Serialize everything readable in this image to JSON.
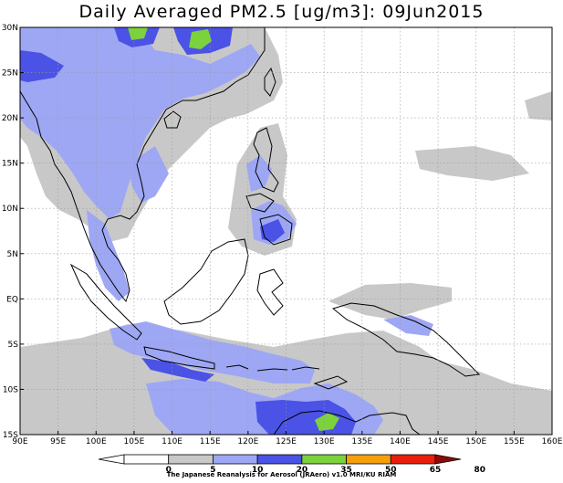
{
  "title": "Daily Averaged PM2.5 [ug/m3]: 09Jun2015",
  "credit": "The Japanese Reanalysis for Aerosol (JRAero) v1.0 MRI/KU RIAM",
  "map": {
    "lon_range": [
      90,
      160
    ],
    "lat_range": [
      -15,
      30
    ],
    "lon_ticks": [
      {
        "v": 90,
        "label": "90E"
      },
      {
        "v": 95,
        "label": "95E"
      },
      {
        "v": 100,
        "label": "100E"
      },
      {
        "v": 105,
        "label": "105E"
      },
      {
        "v": 110,
        "label": "110E"
      },
      {
        "v": 115,
        "label": "115E"
      },
      {
        "v": 120,
        "label": "120E"
      },
      {
        "v": 125,
        "label": "125E"
      },
      {
        "v": 130,
        "label": "130E"
      },
      {
        "v": 135,
        "label": "135E"
      },
      {
        "v": 140,
        "label": "140E"
      },
      {
        "v": 145,
        "label": "145E"
      },
      {
        "v": 150,
        "label": "150E"
      },
      {
        "v": 155,
        "label": "155E"
      },
      {
        "v": 160,
        "label": "160E"
      }
    ],
    "lat_ticks": [
      {
        "v": 30,
        "label": "30N"
      },
      {
        "v": 25,
        "label": "25N"
      },
      {
        "v": 20,
        "label": "20N"
      },
      {
        "v": 15,
        "label": "15N"
      },
      {
        "v": 10,
        "label": "10N"
      },
      {
        "v": 5,
        "label": "5N"
      },
      {
        "v": 0,
        "label": "EQ"
      },
      {
        "v": -5,
        "label": "5S"
      },
      {
        "v": -10,
        "label": "10S"
      },
      {
        "v": -15,
        "label": "15S"
      }
    ],
    "grid": true
  },
  "colorbar": {
    "levels": [
      "0",
      "5",
      "10",
      "20",
      "35",
      "50",
      "65",
      "80"
    ],
    "colors": [
      "#ffffff",
      "#ffffff",
      "#c8c8c8",
      "#9ea7f4",
      "#4b52e6",
      "#7cd23c",
      "#f5a00a",
      "#e81d0a",
      "#8e0a0a"
    ]
  },
  "colors": {
    "gray": "#c8c8c8",
    "light_blue": "#9ea7f4",
    "blue": "#4b52e6",
    "green": "#7cd23c"
  }
}
